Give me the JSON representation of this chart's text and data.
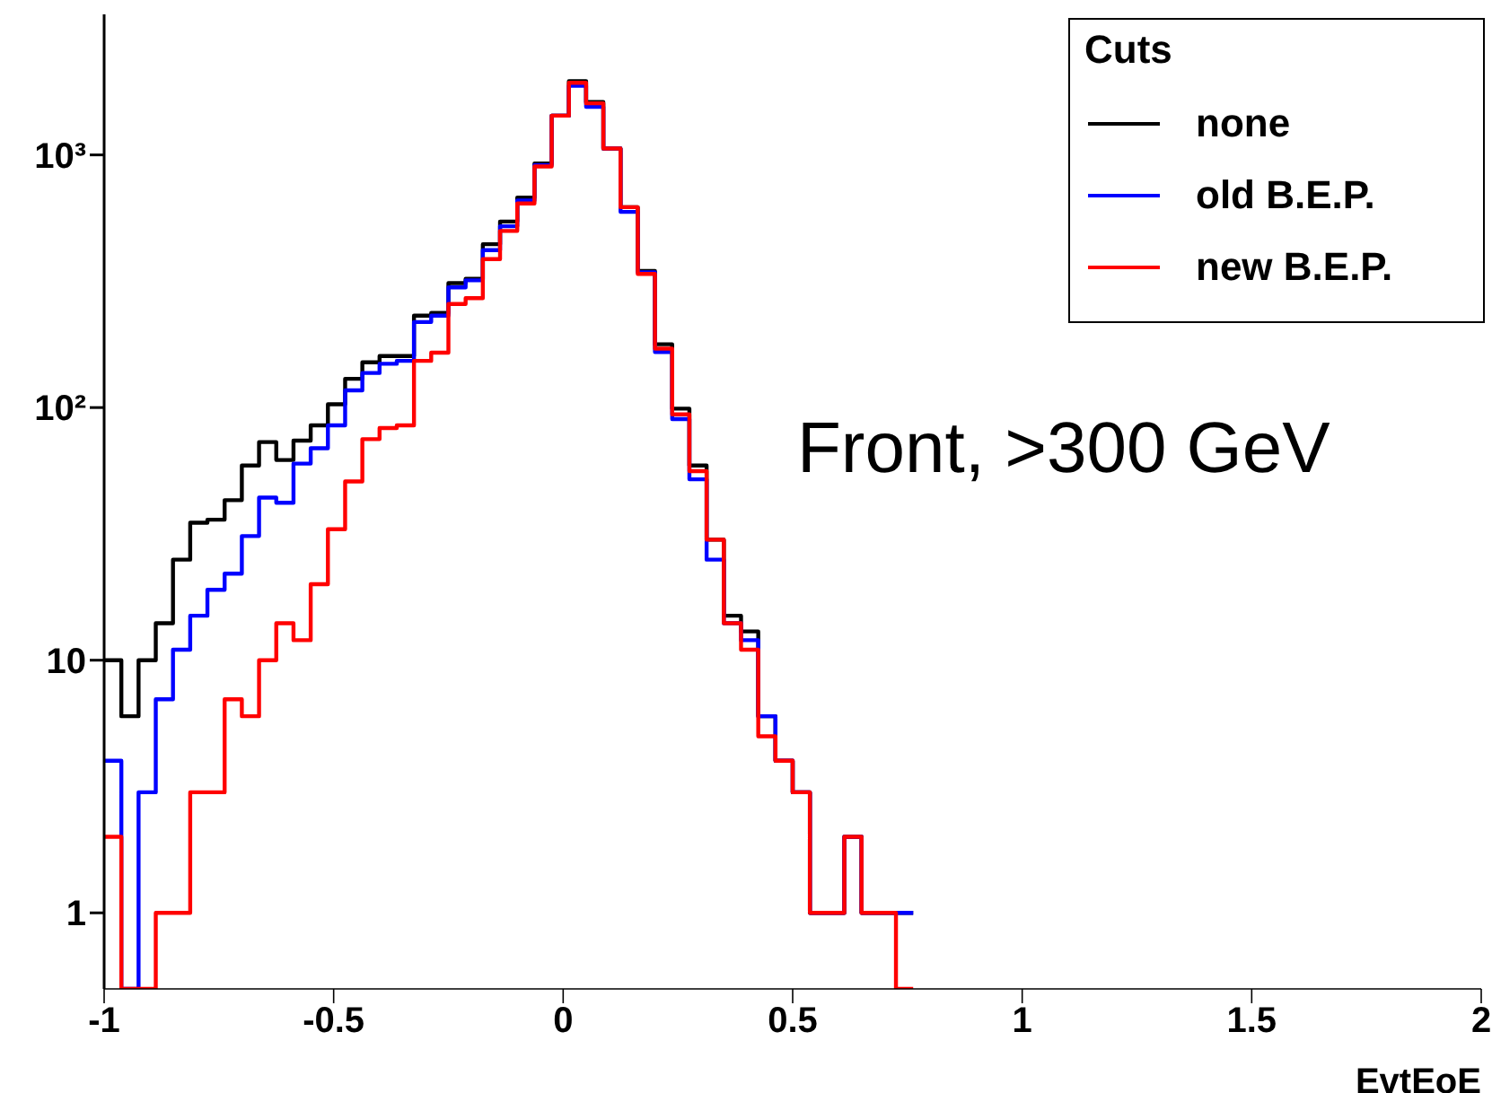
{
  "chart_data": {
    "type": "histogram",
    "xlabel": "EvtEoE",
    "legend_title": "Cuts",
    "legend": "top right",
    "log": true,
    "bins": [
      -1,
      -0.9625,
      -0.925,
      -0.8875,
      -0.85,
      -0.8125,
      -0.775,
      -0.7375,
      -0.7,
      -0.6625,
      -0.625,
      -0.5875,
      -0.55,
      -0.5125,
      -0.475,
      -0.4375,
      -0.4,
      -0.3625,
      -0.325,
      -0.2875,
      -0.25,
      -0.2125,
      -0.175,
      -0.1375,
      -0.1,
      -0.0625,
      -0.025,
      0.0125,
      0.05,
      0.0875,
      0.125,
      0.1625,
      0.2,
      0.2375,
      0.275,
      0.3125,
      0.35,
      0.3875,
      0.425,
      0.4625,
      0.5,
      0.5375,
      0.575,
      0.6125,
      0.65,
      0.6875,
      0.725,
      0.7625
    ],
    "series": [
      {
        "name": "none",
        "color": "#000000",
        "values": [
          10,
          6,
          10,
          14,
          25,
          35,
          36,
          43,
          59,
          73,
          62,
          74,
          85,
          103,
          130,
          151,
          160,
          160,
          231,
          237,
          311,
          323,
          443,
          545,
          678,
          925,
          1430,
          1960,
          1620,
          1060,
          621,
          347,
          178,
          99,
          59,
          30,
          15,
          13,
          6,
          4,
          3,
          1,
          1,
          2,
          1,
          1,
          1
        ]
      },
      {
        "name": "old B.E.P.",
        "color": "#0000ff",
        "values": [
          4,
          null,
          3,
          7,
          11,
          15,
          19,
          22,
          31,
          44,
          42,
          60,
          69,
          85,
          117,
          137,
          149,
          153,
          218,
          231,
          299,
          319,
          420,
          522,
          660,
          912,
          1430,
          1880,
          1550,
          1060,
          595,
          343,
          166,
          90,
          52,
          25,
          14,
          12,
          6,
          4,
          3,
          1,
          1,
          2,
          1,
          1,
          1
        ]
      },
      {
        "name": "new B.E.P.",
        "color": "#ff0000",
        "values": [
          2,
          null,
          null,
          1,
          1,
          3,
          3,
          7,
          6,
          10,
          14,
          12,
          20,
          33,
          51,
          75,
          83,
          85,
          153,
          165,
          257,
          271,
          387,
          500,
          642,
          900,
          1430,
          1930,
          1600,
          1060,
          621,
          338,
          171,
          94,
          56,
          30,
          14,
          11,
          5,
          4,
          3,
          1,
          1,
          2,
          1,
          1,
          null
        ]
      }
    ],
    "xlim": [
      -1,
      2
    ],
    "xticks": [
      -1,
      -0.5,
      0,
      0.5,
      1,
      1.5,
      2
    ],
    "ylim": [
      0.5,
      3600
    ],
    "yticks": [
      1,
      10,
      {
        "value": 100,
        "label": "10²"
      },
      {
        "value": 1000,
        "label": "10³"
      }
    ],
    "annotations": [
      "Front, >300 GeV"
    ]
  }
}
